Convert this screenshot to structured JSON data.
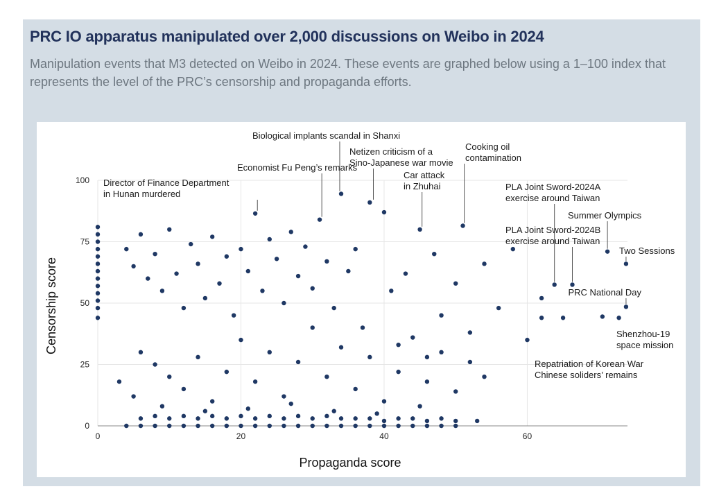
{
  "header": {
    "title": "PRC IO apparatus manipulated over 2,000 discussions on Weibo in 2024",
    "subtitle": "Manipulation events that M3 detected on Weibo in 2024. These events are graphed below using a 1–100 index that represents the level of the PRC’s censorship and propaganda efforts."
  },
  "colors": {
    "panel": "#d4dde5",
    "title": "#22325b",
    "subtitle": "#6d7780",
    "point": "#1f3864",
    "grid": "#e6e6e6"
  },
  "chart_data": {
    "type": "scatter",
    "title": "",
    "xlabel": "Propaganda score",
    "ylabel": "Censorship score",
    "xlim": [
      0,
      74
    ],
    "ylim": [
      0,
      100
    ],
    "xticks": [
      0,
      20,
      40,
      60
    ],
    "yticks": [
      0,
      25,
      50,
      75,
      100
    ],
    "grid": true,
    "annotations": [
      {
        "label": "Director of Finance Department\nin Hunan murdered",
        "x": 22.3,
        "y": 86.5
      },
      {
        "label": "Economist Fu Peng’s remarks",
        "x": 31.3,
        "y": 84
      },
      {
        "label": "Biological implants scandal in Shanxi",
        "x": 33.8,
        "y": 94.5
      },
      {
        "label": "Netizen criticism of a\nSino-Japanese war movie",
        "x": 38.5,
        "y": 91
      },
      {
        "label": "",
        "x": 39.8,
        "y": 87
      },
      {
        "label": "Car attack\nin Zhuhai",
        "x": 45.3,
        "y": 80
      },
      {
        "label": "Cooking oil\ncontamination",
        "x": 51.2,
        "y": 81.5
      },
      {
        "label": "PLA Joint Sword-2024A\nexercise around Taiwan",
        "x": 63.8,
        "y": 57.5
      },
      {
        "label": "PLA Joint Sword-2024B\nexercise around Taiwan",
        "x": 66.3,
        "y": 57.5
      },
      {
        "label": "Summer Olympics",
        "x": 71.2,
        "y": 71
      },
      {
        "label": "Two Sessions",
        "x": 73.8,
        "y": 66
      },
      {
        "label": "PRC National Day",
        "x": 73.8,
        "y": 48.5
      },
      {
        "label": "Shenzhou-19\nspace mission",
        "x": 72.8,
        "y": 44
      },
      {
        "label": "Repatriation of Korean War\nChinese soliders’ remains",
        "x": 70.5,
        "y": 44.5
      }
    ],
    "series": [
      {
        "points": [
          [
            0,
            44
          ],
          [
            0,
            48
          ],
          [
            0,
            51
          ],
          [
            0,
            54
          ],
          [
            0,
            57
          ],
          [
            0,
            60
          ],
          [
            0,
            63
          ],
          [
            0,
            66
          ],
          [
            0,
            69
          ],
          [
            0,
            72
          ],
          [
            0,
            75
          ],
          [
            0,
            78
          ],
          [
            0,
            81
          ],
          [
            4,
            72
          ],
          [
            5,
            65
          ],
          [
            6,
            78
          ],
          [
            7,
            60
          ],
          [
            8,
            70
          ],
          [
            9,
            55
          ],
          [
            10,
            80
          ],
          [
            11,
            62
          ],
          [
            12,
            48
          ],
          [
            13,
            74
          ],
          [
            14,
            66
          ],
          [
            15,
            52
          ],
          [
            16,
            77
          ],
          [
            17,
            58
          ],
          [
            18,
            69
          ],
          [
            19,
            45
          ],
          [
            20,
            72
          ],
          [
            21,
            63
          ],
          [
            22,
            86.5
          ],
          [
            23,
            55
          ],
          [
            24,
            76
          ],
          [
            25,
            68
          ],
          [
            26,
            50
          ],
          [
            27,
            79
          ],
          [
            28,
            61
          ],
          [
            29,
            73
          ],
          [
            30,
            56
          ],
          [
            31,
            84
          ],
          [
            32,
            67
          ],
          [
            33,
            48
          ],
          [
            34,
            94.5
          ],
          [
            35,
            63
          ],
          [
            36,
            72
          ],
          [
            37,
            40
          ],
          [
            38,
            91
          ],
          [
            40,
            87
          ],
          [
            41,
            55
          ],
          [
            42,
            33
          ],
          [
            43,
            62
          ],
          [
            45,
            80
          ],
          [
            46,
            28
          ],
          [
            47,
            70
          ],
          [
            48,
            45
          ],
          [
            50,
            58
          ],
          [
            51,
            81.5
          ],
          [
            52,
            38
          ],
          [
            54,
            66
          ],
          [
            56,
            48
          ],
          [
            58,
            72
          ],
          [
            60,
            35
          ],
          [
            62,
            52
          ],
          [
            63.8,
            57.5
          ],
          [
            66.3,
            57.5
          ],
          [
            71.2,
            71
          ],
          [
            73.8,
            66
          ],
          [
            73.8,
            48.5
          ],
          [
            72.8,
            44
          ],
          [
            70.5,
            44.5
          ],
          [
            65,
            44
          ],
          [
            62,
            44
          ],
          [
            6,
            30
          ],
          [
            8,
            25
          ],
          [
            10,
            20
          ],
          [
            12,
            15
          ],
          [
            14,
            28
          ],
          [
            16,
            10
          ],
          [
            18,
            22
          ],
          [
            20,
            35
          ],
          [
            22,
            18
          ],
          [
            24,
            30
          ],
          [
            26,
            12
          ],
          [
            28,
            26
          ],
          [
            30,
            40
          ],
          [
            32,
            20
          ],
          [
            34,
            32
          ],
          [
            36,
            15
          ],
          [
            38,
            28
          ],
          [
            40,
            10
          ],
          [
            42,
            22
          ],
          [
            44,
            36
          ],
          [
            46,
            18
          ],
          [
            48,
            30
          ],
          [
            50,
            14
          ],
          [
            52,
            26
          ],
          [
            54,
            20
          ],
          [
            3,
            18
          ],
          [
            5,
            12
          ],
          [
            9,
            8
          ],
          [
            15,
            6
          ],
          [
            21,
            7
          ],
          [
            27,
            9
          ],
          [
            33,
            6
          ],
          [
            39,
            5
          ],
          [
            45,
            8
          ],
          [
            4,
            0
          ],
          [
            6,
            0
          ],
          [
            8,
            0
          ],
          [
            10,
            0
          ],
          [
            12,
            0
          ],
          [
            14,
            0
          ],
          [
            16,
            0
          ],
          [
            18,
            0
          ],
          [
            20,
            0
          ],
          [
            22,
            0
          ],
          [
            24,
            0
          ],
          [
            26,
            0
          ],
          [
            28,
            0
          ],
          [
            30,
            0
          ],
          [
            32,
            0
          ],
          [
            34,
            0
          ],
          [
            36,
            0
          ],
          [
            38,
            0
          ],
          [
            40,
            0
          ],
          [
            42,
            0
          ],
          [
            44,
            0
          ],
          [
            46,
            0
          ],
          [
            48,
            0
          ],
          [
            50,
            0
          ],
          [
            6,
            3
          ],
          [
            8,
            4
          ],
          [
            10,
            3
          ],
          [
            12,
            4
          ],
          [
            14,
            3
          ],
          [
            16,
            4
          ],
          [
            18,
            3
          ],
          [
            20,
            4
          ],
          [
            22,
            3
          ],
          [
            24,
            4
          ],
          [
            26,
            3
          ],
          [
            28,
            4
          ],
          [
            30,
            3
          ],
          [
            32,
            4
          ],
          [
            34,
            3
          ],
          [
            36,
            3
          ],
          [
            38,
            3
          ],
          [
            40,
            2
          ],
          [
            42,
            3
          ],
          [
            44,
            3
          ],
          [
            46,
            2
          ],
          [
            48,
            3
          ],
          [
            50,
            2
          ],
          [
            53,
            2
          ]
        ]
      }
    ]
  }
}
